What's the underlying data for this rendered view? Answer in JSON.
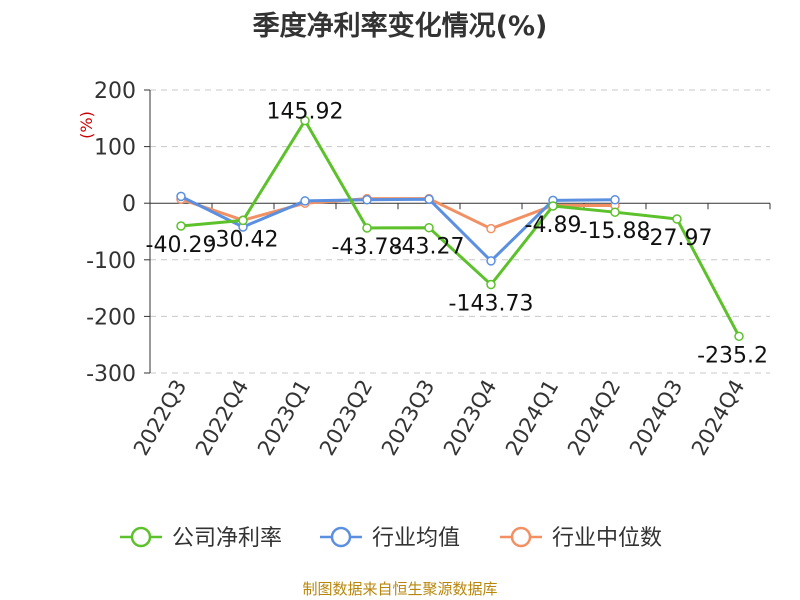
{
  "chart_data": {
    "type": "line",
    "title": "季度净利率变化情况(%)",
    "ylabel": "(%)",
    "categories": [
      "2022Q3",
      "2022Q4",
      "2023Q1",
      "2023Q2",
      "2023Q3",
      "2023Q4",
      "2024Q1",
      "2024Q2",
      "2024Q3",
      "2024Q4"
    ],
    "yticks": [
      200,
      100,
      0,
      -100,
      -200,
      -300
    ],
    "ylim": [
      -300,
      200
    ],
    "grid": true,
    "legend_position": "bottom",
    "series": [
      {
        "name": "公司净利率",
        "color": "#5cc12b",
        "values": [
          -40.29,
          -30.42,
          145.92,
          -43.78,
          -43.27,
          -143.73,
          -4.89,
          -15.88,
          -27.97,
          -235.2
        ],
        "labels": [
          "-40.29",
          "-30.42",
          "145.92",
          "-43.78",
          "-43.27",
          "-143.73",
          "-4.89",
          "-15.88",
          "-27.97",
          "-235.2"
        ]
      },
      {
        "name": "行业均值",
        "color": "#5b8fe0",
        "values": [
          12,
          -42,
          4,
          6,
          7,
          -102,
          5,
          6,
          null,
          null
        ]
      },
      {
        "name": "行业中位数",
        "color": "#f39063",
        "values": [
          7,
          -30,
          0,
          8,
          8,
          -45,
          -4,
          -4,
          null,
          null
        ]
      }
    ],
    "source": "制图数据来自恒生聚源数据库"
  }
}
